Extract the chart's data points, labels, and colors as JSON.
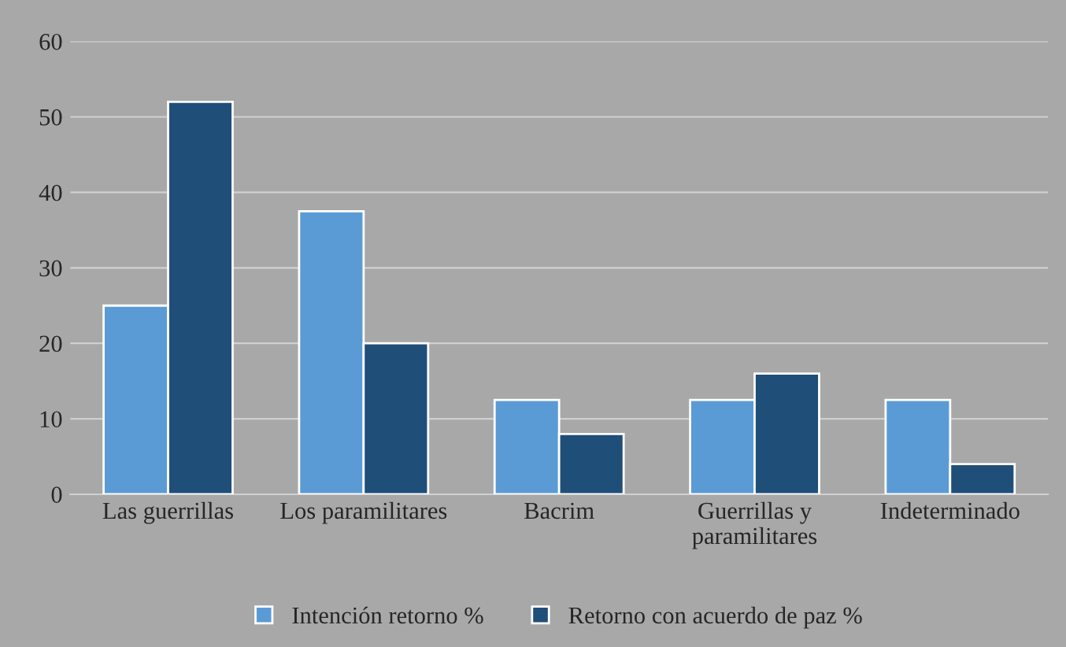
{
  "chart_data": {
    "type": "bar",
    "categories": [
      "Las guerrillas",
      "Los paramilitares",
      "Bacrim",
      "Guerrillas y\nparamilitares",
      "Indeterminado"
    ],
    "series": [
      {
        "name": "Intención retorno %",
        "color": "#5b9bd5",
        "values": [
          25,
          37.5,
          12.5,
          12.5,
          12.5
        ]
      },
      {
        "name": "Retorno con acuerdo de paz %",
        "color": "#1f4e79",
        "values": [
          52,
          20,
          8,
          16,
          4
        ]
      }
    ],
    "ylim": [
      0,
      60
    ],
    "yticks": [
      0,
      10,
      20,
      30,
      40,
      50,
      60
    ],
    "grid": "y",
    "legend": "bottom"
  }
}
